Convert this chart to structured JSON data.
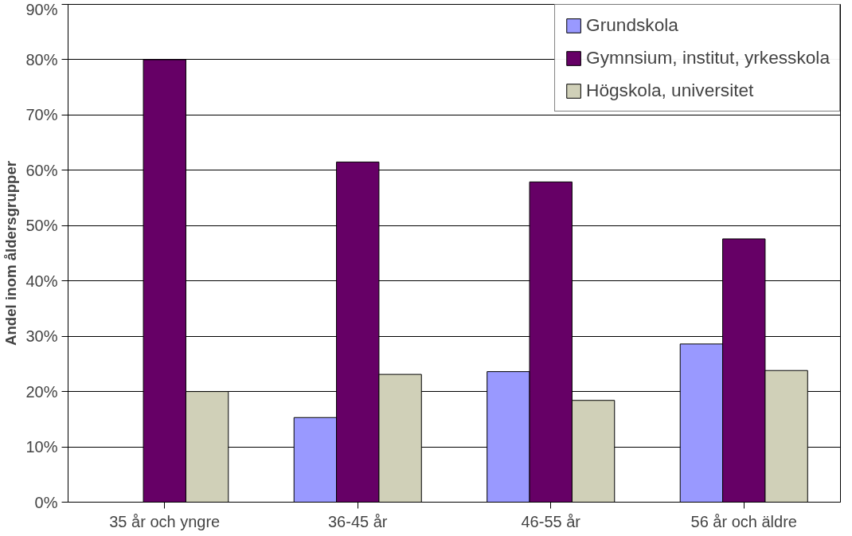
{
  "chart_data": {
    "type": "bar",
    "ylabel": "Andel inom åldersgrupper",
    "categories": [
      "35 år och yngre",
      "36-45 år",
      "46-55 år",
      "56 år och äldre"
    ],
    "series": [
      {
        "name": "Grundskola",
        "color": "#9999ff",
        "values": [
          null,
          15.3,
          23.6,
          28.6
        ]
      },
      {
        "name": "Gymnsium, institut, yrkesskola",
        "color": "#660066",
        "values": [
          80.0,
          61.5,
          57.9,
          47.6
        ]
      },
      {
        "name": "Högskola, universitet",
        "color": "#d0d0b8",
        "values": [
          20.0,
          23.1,
          18.4,
          23.8
        ]
      }
    ],
    "ylim": [
      0,
      90
    ],
    "yticks": [
      {
        "value": 0,
        "label": "0%"
      },
      {
        "value": 10,
        "label": "10%"
      },
      {
        "value": 20,
        "label": "20%"
      },
      {
        "value": 30,
        "label": "30%"
      },
      {
        "value": 40,
        "label": "40%"
      },
      {
        "value": 50,
        "label": "50%"
      },
      {
        "value": 60,
        "label": "60%"
      },
      {
        "value": 70,
        "label": "70%"
      },
      {
        "value": 80,
        "label": "80%"
      },
      {
        "value": 90,
        "label": "90%"
      }
    ],
    "grid": "y",
    "legend": "top right"
  }
}
